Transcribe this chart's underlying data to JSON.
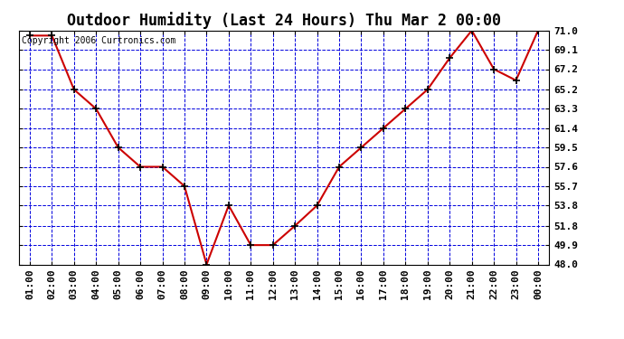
{
  "title": "Outdoor Humidity (Last 24 Hours) Thu Mar 2 00:00",
  "copyright": "Copyright 2006 Curtronics.com",
  "x_labels": [
    "01:00",
    "02:00",
    "03:00",
    "04:00",
    "05:00",
    "06:00",
    "07:00",
    "08:00",
    "09:00",
    "10:00",
    "11:00",
    "12:00",
    "13:00",
    "14:00",
    "15:00",
    "16:00",
    "17:00",
    "18:00",
    "19:00",
    "20:00",
    "21:00",
    "22:00",
    "23:00",
    "00:00"
  ],
  "y_values": [
    70.5,
    70.5,
    65.2,
    63.3,
    59.5,
    57.6,
    57.6,
    55.7,
    48.0,
    53.8,
    49.9,
    49.9,
    51.8,
    53.8,
    57.6,
    59.5,
    61.4,
    63.3,
    65.2,
    68.3,
    71.0,
    67.2,
    66.1,
    71.0
  ],
  "ylim": [
    48.0,
    71.0
  ],
  "yticks": [
    48.0,
    49.9,
    51.8,
    53.8,
    55.7,
    57.6,
    59.5,
    61.4,
    63.3,
    65.2,
    67.2,
    69.1,
    71.0
  ],
  "line_color": "#cc0000",
  "marker_color": "#000000",
  "plot_bg_color": "#ffffff",
  "grid_color": "#0000dd",
  "fig_bg_color": "#ffffff",
  "title_fontsize": 12,
  "tick_fontsize": 8,
  "copyright_fontsize": 7
}
